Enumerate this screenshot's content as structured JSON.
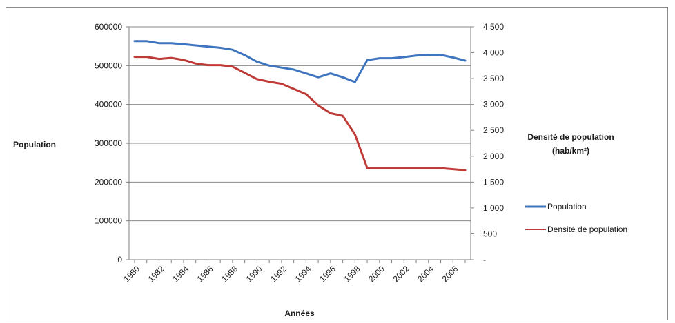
{
  "chart_data": {
    "type": "line",
    "title": "",
    "xlabel": "Années",
    "ylabel": "Population",
    "y2label_line1": "Densité de population",
    "y2label_line2": "(hab/km²)",
    "x": [
      1980,
      1981,
      1982,
      1983,
      1984,
      1985,
      1986,
      1987,
      1988,
      1989,
      1990,
      1991,
      1992,
      1993,
      1994,
      1995,
      1996,
      1997,
      1998,
      1999,
      2000,
      2001,
      2002,
      2003,
      2004,
      2005,
      2006,
      2007
    ],
    "x_tick_labels": [
      "1980",
      "1982",
      "1984",
      "1986",
      "1988",
      "1990",
      "1992",
      "1994",
      "1996",
      "1998",
      "2000",
      "2002",
      "2004",
      "2006"
    ],
    "ylim": [
      0,
      600000
    ],
    "y_tick_labels": [
      "0",
      "100000",
      "200000",
      "300000",
      "400000",
      "500000",
      "600000"
    ],
    "y2lim": [
      0,
      4500
    ],
    "y2_tick_labels": [
      "-",
      "500",
      "1 000",
      "1 500",
      "2 000",
      "2 500",
      "3 000",
      "3 500",
      "4 000",
      "4 500"
    ],
    "grid": "horizontal major",
    "legend_position": "right",
    "series": [
      {
        "name": "Population",
        "axis": "left",
        "color": "#3f74bf",
        "values": [
          563000,
          563000,
          558000,
          558000,
          555000,
          552000,
          549000,
          546000,
          541000,
          527000,
          510000,
          500000,
          495000,
          490000,
          480000,
          470000,
          480000,
          470000,
          458000,
          514000,
          519000,
          519000,
          522000,
          526000,
          528000,
          528000,
          521000,
          513000
        ]
      },
      {
        "name": "Densité de population",
        "axis": "right",
        "color": "#be3b37",
        "values": [
          3920,
          3920,
          3880,
          3900,
          3860,
          3790,
          3760,
          3760,
          3730,
          3610,
          3490,
          3440,
          3400,
          3300,
          3200,
          2980,
          2830,
          2780,
          2420,
          1770,
          1770,
          1770,
          1770,
          1770,
          1770,
          1770,
          1750,
          1730
        ]
      }
    ]
  }
}
